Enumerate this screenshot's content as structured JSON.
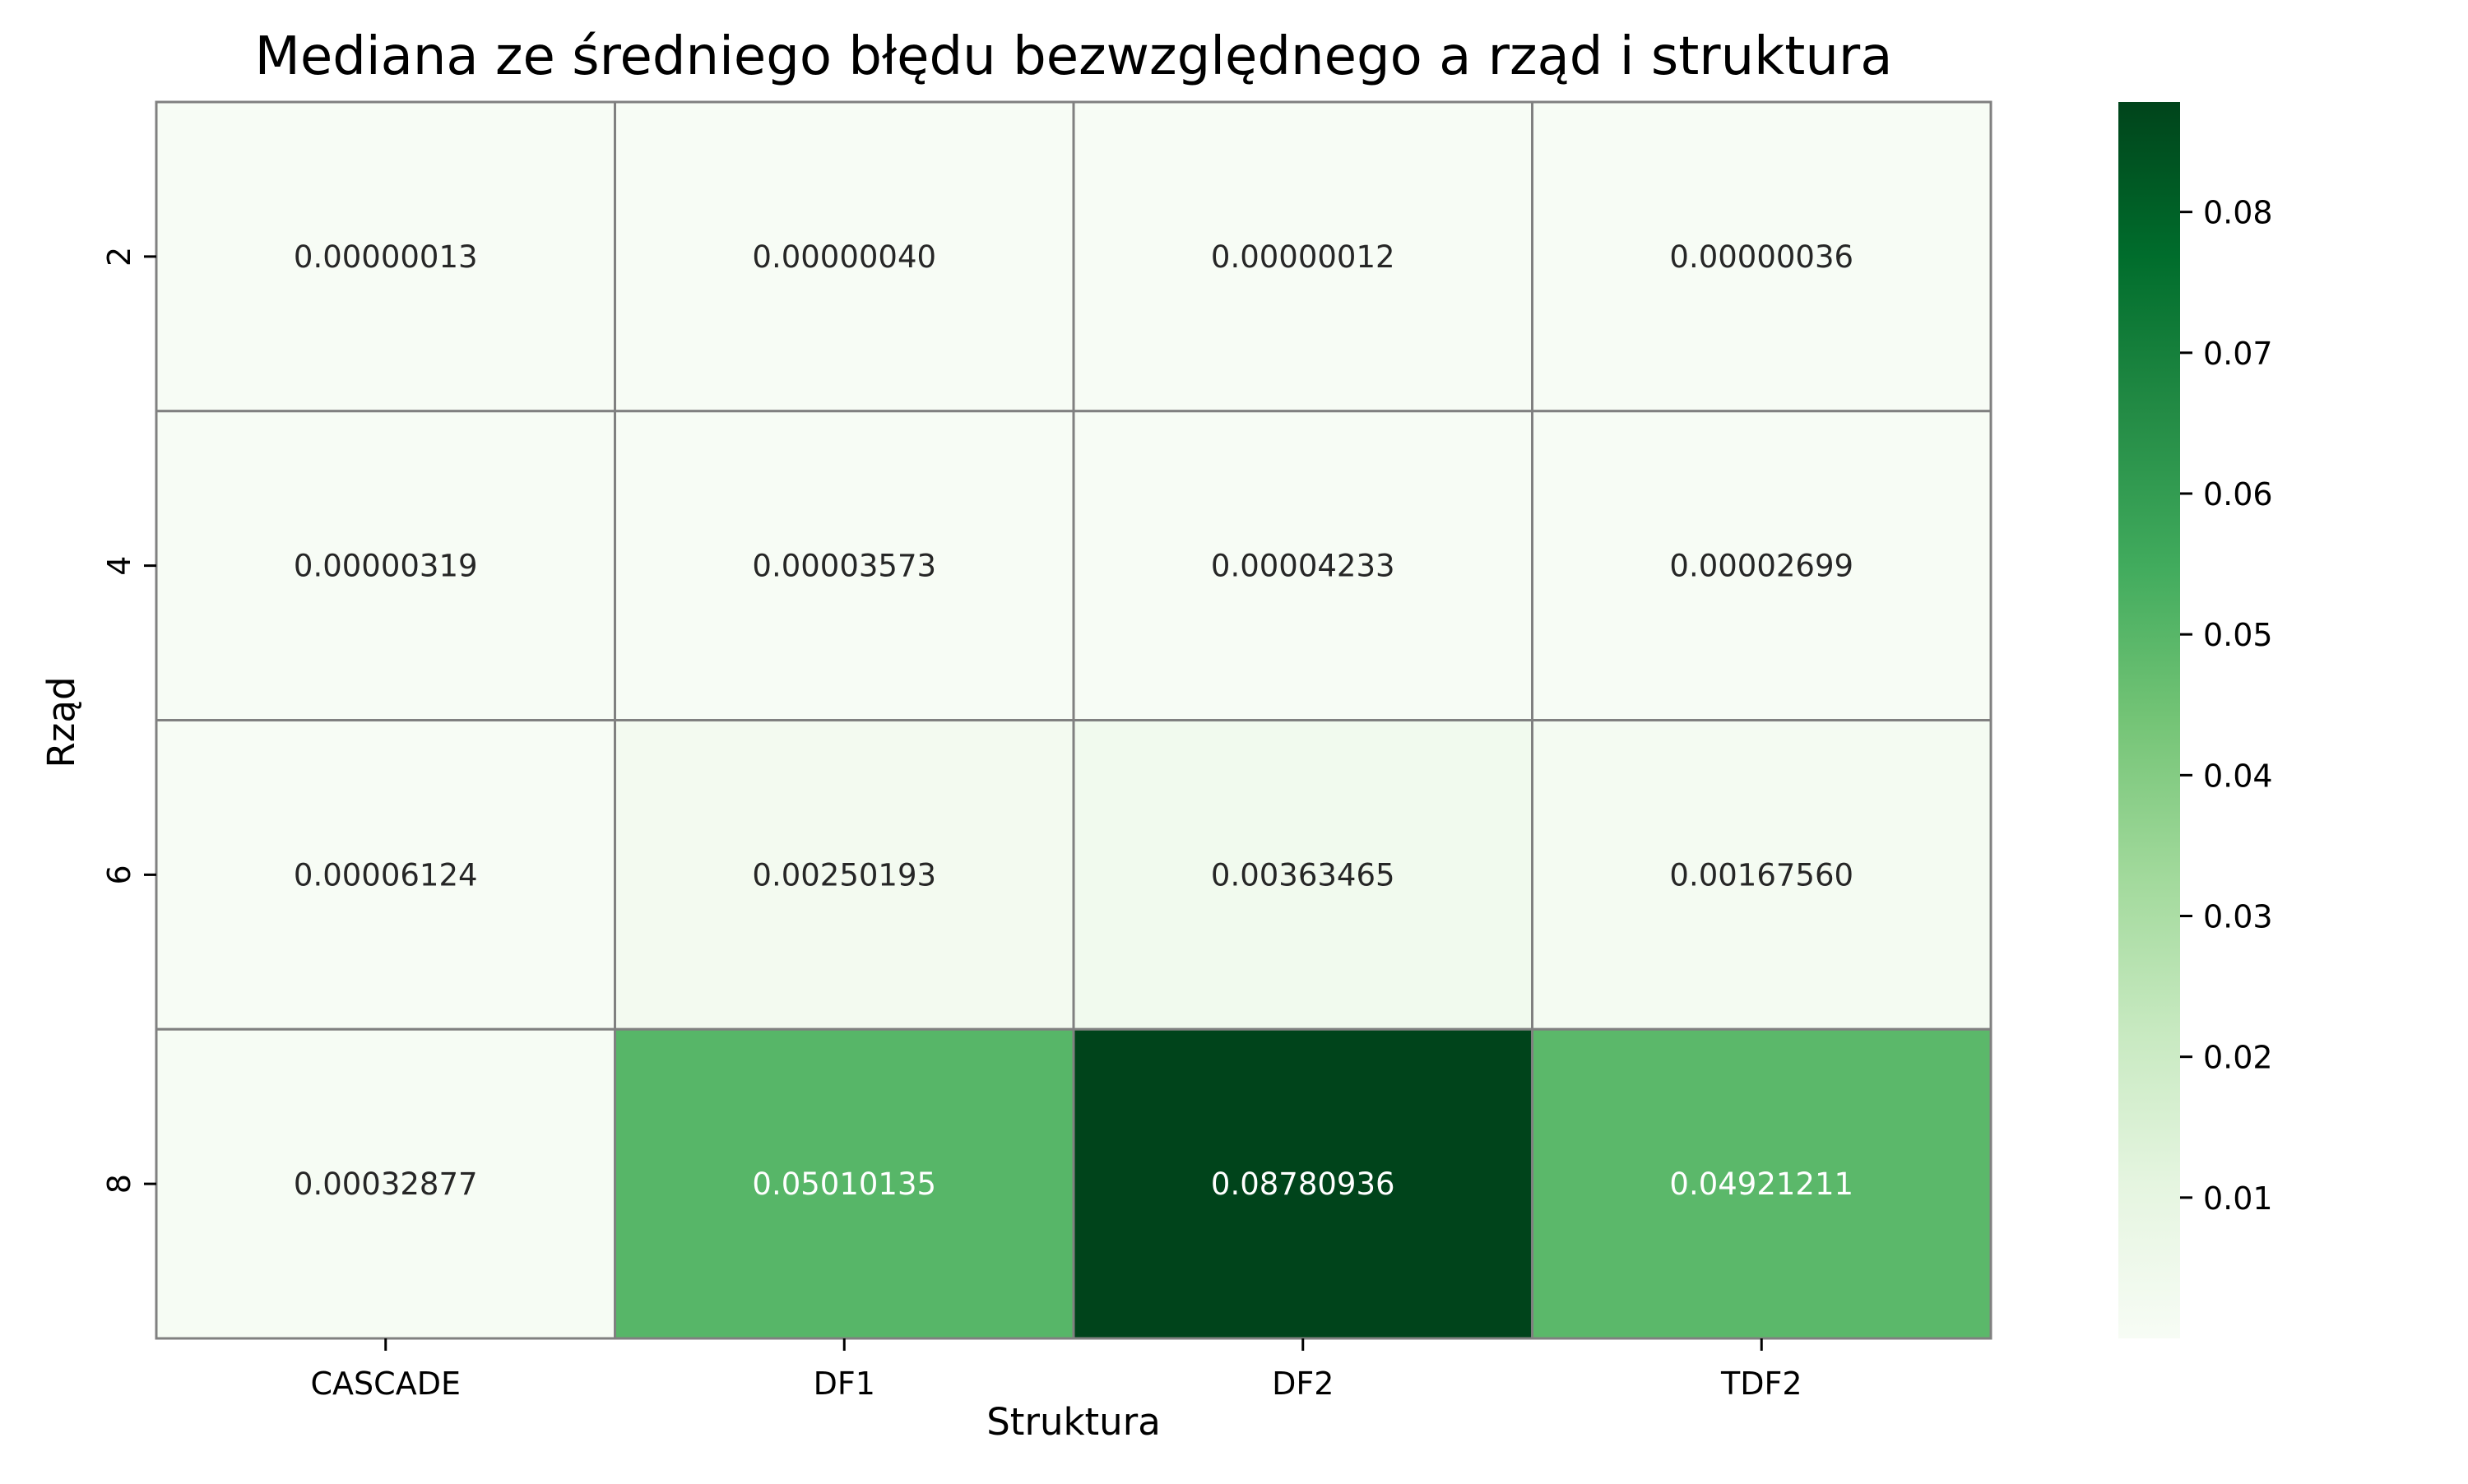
{
  "chart_data": {
    "type": "heatmap",
    "title": "Mediana ze średniego błędu bezwzględnego a rząd i struktura",
    "xlabel": "Struktura",
    "ylabel": "Rząd",
    "x_categories": [
      "CASCADE",
      "DF1",
      "DF2",
      "TDF2"
    ],
    "y_categories": [
      "2",
      "4",
      "6",
      "8"
    ],
    "values": [
      [
        1.3e-07,
        4e-07,
        1.2e-07,
        3.6e-07
      ],
      [
        3.19e-06,
        3.573e-05,
        4.233e-05,
        2.699e-05
      ],
      [
        6.124e-05,
        0.00250193,
        0.00363465,
        0.0016756
      ],
      [
        0.00032877,
        0.05010135,
        0.08780936,
        0.04921211
      ]
    ],
    "cell_labels": [
      [
        "0.00000013",
        "0.00000040",
        "0.00000012",
        "0.00000036"
      ],
      [
        "0.00000319",
        "0.00003573",
        "0.00004233",
        "0.00002699"
      ],
      [
        "0.00006124",
        "0.00250193",
        "0.00363465",
        "0.00167560"
      ],
      [
        "0.00032877",
        "0.05010135",
        "0.08780936",
        "0.04921211"
      ]
    ],
    "colormap": "Greens",
    "colorbar": {
      "range": [
        1.2e-07,
        0.08780936
      ],
      "ticks": [
        0.01,
        0.02,
        0.03,
        0.04,
        0.05,
        0.06,
        0.07,
        0.08
      ],
      "tick_labels": [
        "0.01",
        "0.02",
        "0.03",
        "0.04",
        "0.05",
        "0.06",
        "0.07",
        "0.08"
      ]
    },
    "cell_border_color": "#808080",
    "colorbar_placement": "right"
  }
}
